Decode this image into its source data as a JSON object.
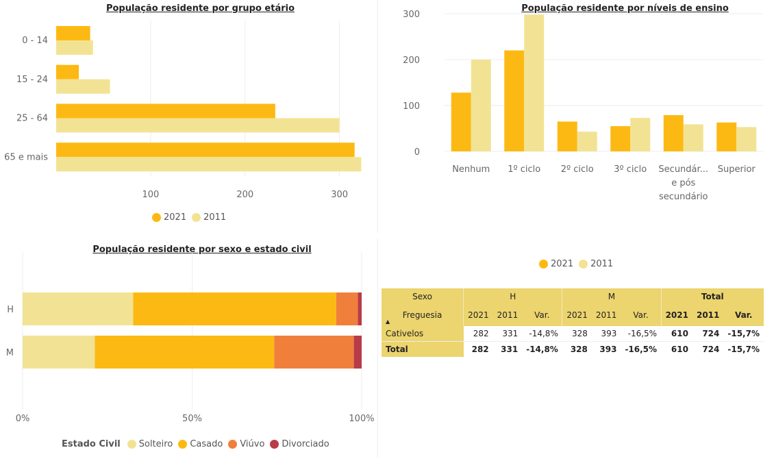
{
  "colors": {
    "y2021": "#fdb913",
    "y2011": "#f2e394",
    "solteiro": "#f2e394",
    "casado": "#fdb913",
    "viuvo": "#f07f3c",
    "divorciado": "#b83b4a",
    "header_bg": "#ecd46e"
  },
  "legend_years": {
    "a": "2021",
    "b": "2011"
  },
  "chart_data": [
    {
      "type": "bar",
      "orientation": "horizontal",
      "title": "População residente por grupo etário",
      "categories": [
        "0 - 14",
        "15 - 24",
        "25 - 64",
        "65 e mais"
      ],
      "series": [
        {
          "name": "2021",
          "values": [
            36,
            24,
            232,
            316
          ]
        },
        {
          "name": "2011",
          "values": [
            39,
            57,
            300,
            323
          ]
        }
      ],
      "xlim": [
        0,
        330
      ],
      "xticks": [
        100,
        200,
        300
      ],
      "legend": "bottom"
    },
    {
      "type": "bar",
      "title": "População residente por níveis de ensino",
      "categories": [
        "Nenhum",
        "1º ciclo",
        "2º ciclo",
        "3º ciclo",
        "Secundár... e pós secundário",
        "Superior"
      ],
      "series": [
        {
          "name": "2021",
          "values": [
            128,
            220,
            65,
            55,
            79,
            63
          ]
        },
        {
          "name": "2011",
          "values": [
            200,
            298,
            43,
            73,
            59,
            53
          ]
        }
      ],
      "ylim": [
        0,
        300
      ],
      "yticks": [
        0,
        100,
        200,
        300
      ],
      "legend": "top"
    },
    {
      "type": "bar",
      "orientation": "horizontal",
      "stacked": "percent",
      "title": "População residente por sexo e estado civil",
      "categories": [
        "H",
        "M"
      ],
      "series": [
        {
          "name": "Solteiro",
          "values": [
            32.6,
            21.3
          ]
        },
        {
          "name": "Casado",
          "values": [
            59.9,
            52.9
          ]
        },
        {
          "name": "Viúvo",
          "values": [
            6.4,
            23.5
          ]
        },
        {
          "name": "Divorciado",
          "values": [
            1.1,
            2.3
          ]
        }
      ],
      "xticks": [
        "0%",
        "50%",
        "100%"
      ],
      "legend_title": "Estado Civil",
      "legend": "bottom"
    },
    {
      "type": "table",
      "headers": {
        "col_group": "Sexo",
        "row_group": "Freguesia",
        "groups": [
          "H",
          "M",
          "Total"
        ],
        "sub": [
          "2021",
          "2011",
          "Var."
        ]
      },
      "rows": [
        {
          "label": "Cativelos",
          "cells": [
            "282",
            "331",
            "-14,8%",
            "328",
            "393",
            "-16,5%",
            "610",
            "724",
            "-15,7%"
          ]
        },
        {
          "label": "Total",
          "cells": [
            "282",
            "331",
            "-14,8%",
            "328",
            "393",
            "-16,5%",
            "610",
            "724",
            "-15,7%"
          ]
        }
      ]
    }
  ]
}
